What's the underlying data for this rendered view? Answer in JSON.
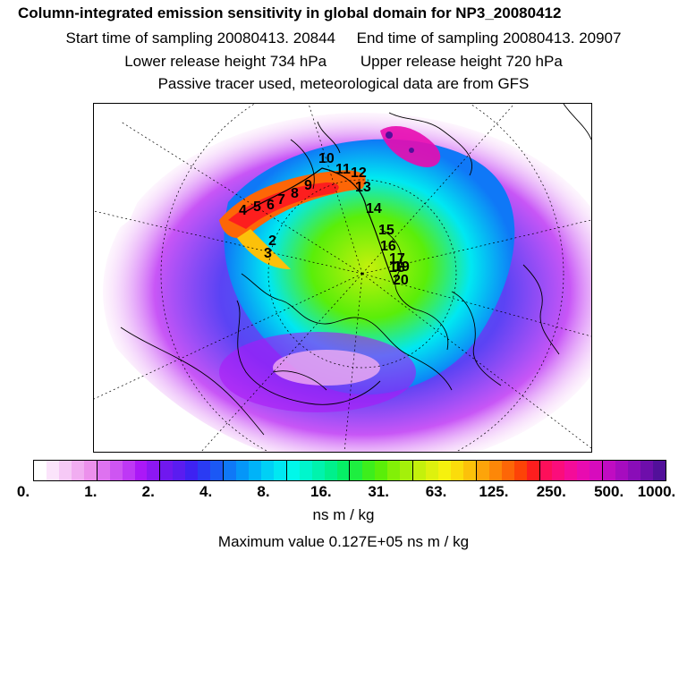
{
  "header": {
    "title": "Column-integrated emission sensitivity in global domain for NP3_20080412",
    "start_label": "Start time of sampling 20080413. 20844",
    "end_label": "End time of sampling 20080413. 20907",
    "lower_label": "Lower release height  734 hPa",
    "upper_label": "Upper release height  720 hPa",
    "tracer_label": "Passive tracer used, meteorological data are from GFS"
  },
  "map": {
    "trajectory_labels": [
      "2",
      "3",
      "4",
      "5",
      "6",
      "7",
      "8",
      "9",
      "10",
      "11",
      "12",
      "13",
      "14",
      "15",
      "16",
      "17",
      "18",
      "19",
      "20"
    ]
  },
  "colorbar": {
    "tick_labels": [
      "0.",
      "1.",
      "2.",
      "4.",
      "8.",
      "16.",
      "31.",
      "63.",
      "125.",
      "250.",
      "500.",
      "1000."
    ],
    "unit": "ns m / kg",
    "colors": [
      "#ffffff",
      "#fbe4fb",
      "#f6c9f6",
      "#f1adf1",
      "#ec90ec",
      "#de72f0",
      "#ce55f2",
      "#be38f5",
      "#ab18f7",
      "#8d17f3",
      "#7018ef",
      "#5a1cf0",
      "#3e22f2",
      "#2a3bf3",
      "#1b58f5",
      "#0f78f7",
      "#0596f8",
      "#00b3f8",
      "#00d0f5",
      "#00e8f2",
      "#00f8ea",
      "#00f6cc",
      "#00f3ad",
      "#00f08c",
      "#06ef66",
      "#1eee40",
      "#3dee1c",
      "#5aee09",
      "#82f007",
      "#a4f00a",
      "#c4f10c",
      "#def10e",
      "#f6f10e",
      "#fbdc0b",
      "#fcc10a",
      "#fda40a",
      "#fd8708",
      "#fd6607",
      "#fd4307",
      "#fd1e1e",
      "#fd0f5a",
      "#fb0d7b",
      "#f40c99",
      "#e80bb0",
      "#d70bbd",
      "#c00cc2",
      "#a60cbf",
      "#8a0db8",
      "#6e0eab",
      "#52109a"
    ]
  },
  "max_value_label": "Maximum value  0.127E+05 ns m / kg"
}
